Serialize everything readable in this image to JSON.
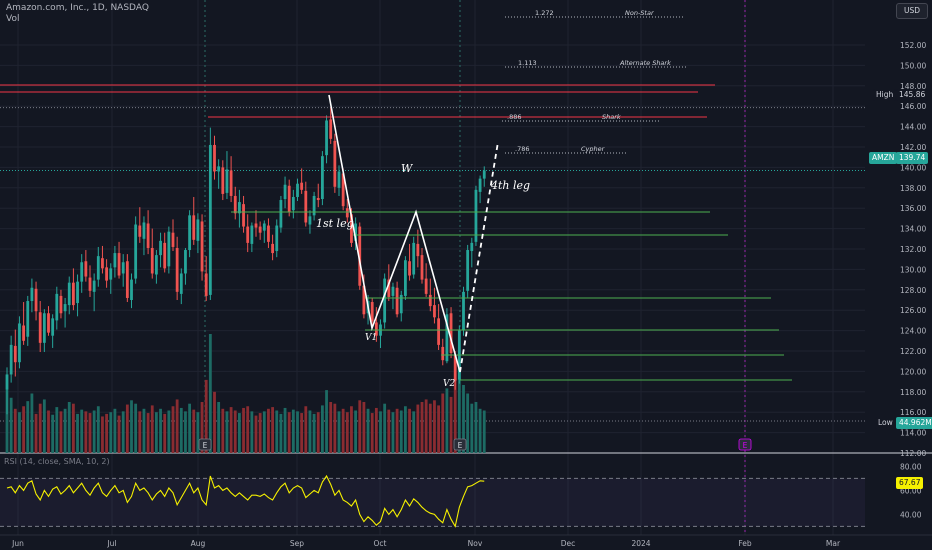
{
  "header": {
    "title": "Amazon.com, Inc., 1D, NASDAQ",
    "vol_label": "Vol"
  },
  "currency": "USD",
  "chart_data": {
    "type": "candlestick",
    "symbol": "AMZN",
    "y_ticks": [
      112,
      114,
      116,
      118,
      120,
      122,
      124,
      126,
      128,
      130,
      132,
      134,
      136,
      138,
      140,
      142,
      144,
      146,
      148,
      150,
      152
    ],
    "x_ticks": [
      "Jun",
      "Jul",
      "Aug",
      "Sep",
      "Oct",
      "Nov",
      "Dec",
      "2024",
      "Feb",
      "Mar"
    ],
    "ylim": [
      112,
      153
    ],
    "price_tag": "139.74",
    "high": {
      "label": "High",
      "value": "145.86"
    },
    "low_volume": {
      "label": "Low",
      "value": "44.962M"
    },
    "fib_levels": [
      {
        "ratio": "1.272",
        "name": "Non-Star"
      },
      {
        "ratio": "1.113",
        "name": "Alternate Shark"
      },
      {
        "ratio": ".886",
        "name": "Shark"
      },
      {
        "ratio": ".786",
        "name": "Cypher"
      }
    ],
    "annotations": [
      "W",
      "1st leg",
      "4th leg",
      "V1",
      "V2"
    ],
    "earnings_markers": [
      "E",
      "E"
    ],
    "rsi": {
      "label": "RSI (14, close, SMA, 10, 2)",
      "value": "67.67",
      "ticks": [
        80.0,
        60.0,
        40.0
      ],
      "bands": [
        70,
        30
      ]
    },
    "ohlc": [
      [
        118.2,
        120.4,
        115.8,
        119.7
      ],
      [
        119.7,
        123.5,
        118.9,
        122.6
      ],
      [
        122.5,
        124.1,
        119.5,
        120.9
      ],
      [
        120.9,
        125.4,
        120.3,
        124.7
      ],
      [
        124.5,
        126.8,
        122.6,
        123.0
      ],
      [
        123.4,
        127.4,
        122.5,
        126.9
      ],
      [
        126.9,
        129.1,
        125.8,
        128.2
      ],
      [
        128.1,
        128.8,
        125.0,
        125.9
      ],
      [
        125.8,
        126.9,
        121.9,
        122.8
      ],
      [
        122.8,
        126.1,
        121.9,
        125.7
      ],
      [
        125.7,
        126.4,
        123.5,
        123.8
      ],
      [
        123.5,
        125.6,
        122.3,
        125.2
      ],
      [
        125.0,
        128.3,
        124.1,
        127.6
      ],
      [
        127.4,
        128.0,
        125.2,
        125.7
      ],
      [
        125.9,
        127.2,
        124.3,
        126.6
      ],
      [
        126.5,
        129.3,
        125.6,
        128.7
      ],
      [
        128.7,
        130.1,
        126.0,
        126.5
      ],
      [
        126.7,
        129.5,
        125.4,
        128.8
      ],
      [
        128.8,
        131.5,
        127.7,
        130.7
      ],
      [
        130.8,
        131.9,
        128.8,
        129.3
      ],
      [
        129.2,
        130.4,
        127.3,
        127.9
      ],
      [
        127.8,
        129.6,
        125.9,
        128.9
      ],
      [
        129.0,
        132.2,
        128.3,
        131.3
      ],
      [
        131.1,
        132.3,
        129.6,
        130.1
      ],
      [
        130.2,
        131.0,
        128.2,
        128.9
      ],
      [
        129.0,
        130.6,
        127.6,
        130.1
      ],
      [
        130.2,
        132.3,
        129.2,
        131.6
      ],
      [
        131.6,
        132.7,
        129.1,
        129.4
      ],
      [
        129.6,
        131.5,
        128.3,
        130.7
      ],
      [
        130.8,
        131.5,
        126.8,
        127.2
      ],
      [
        127.0,
        129.6,
        126.2,
        129.0
      ],
      [
        129.1,
        135.2,
        128.6,
        134.4
      ],
      [
        134.3,
        136.1,
        132.6,
        133.2
      ],
      [
        133.0,
        135.2,
        131.4,
        134.6
      ],
      [
        134.5,
        135.8,
        131.5,
        132.1
      ],
      [
        132.1,
        134.0,
        129.1,
        129.6
      ],
      [
        129.5,
        131.9,
        128.6,
        131.4
      ],
      [
        131.4,
        133.6,
        130.2,
        132.8
      ],
      [
        132.6,
        133.6,
        129.7,
        130.1
      ],
      [
        130.3,
        134.2,
        129.6,
        133.7
      ],
      [
        133.6,
        134.9,
        131.8,
        132.2
      ],
      [
        132.1,
        133.2,
        127.0,
        127.8
      ],
      [
        127.6,
        130.1,
        126.6,
        129.6
      ],
      [
        129.6,
        132.1,
        128.5,
        131.9
      ],
      [
        131.9,
        135.8,
        131.2,
        135.3
      ],
      [
        135.3,
        137.1,
        132.4,
        132.9
      ],
      [
        132.8,
        135.5,
        131.6,
        134.9
      ],
      [
        134.7,
        135.4,
        128.9,
        129.8
      ],
      [
        129.6,
        131.3,
        126.9,
        127.4
      ],
      [
        127.5,
        143.9,
        127.0,
        142.2
      ],
      [
        142.2,
        143.1,
        138.8,
        139.6
      ],
      [
        139.6,
        140.8,
        137.9,
        140.1
      ],
      [
        140.0,
        140.7,
        136.8,
        137.4
      ],
      [
        137.5,
        141.6,
        136.9,
        139.8
      ],
      [
        139.7,
        141.1,
        136.6,
        137.2
      ],
      [
        137.2,
        138.1,
        134.9,
        135.5
      ],
      [
        135.5,
        137.8,
        134.1,
        136.6
      ],
      [
        136.4,
        137.2,
        133.6,
        134.2
      ],
      [
        134.2,
        135.4,
        131.7,
        132.6
      ],
      [
        132.5,
        134.6,
        131.7,
        134.3
      ],
      [
        134.5,
        135.8,
        133.2,
        134.1
      ],
      [
        134.2,
        134.7,
        132.9,
        133.6
      ],
      [
        133.8,
        134.8,
        132.6,
        134.5
      ],
      [
        134.3,
        135.0,
        132.1,
        132.7
      ],
      [
        132.5,
        133.4,
        130.9,
        131.6
      ],
      [
        131.8,
        134.9,
        131.2,
        134.3
      ],
      [
        134.1,
        137.2,
        133.6,
        136.8
      ],
      [
        136.9,
        139.1,
        136.0,
        138.3
      ],
      [
        138.2,
        138.8,
        135.2,
        135.6
      ],
      [
        135.8,
        137.8,
        135.0,
        137.1
      ],
      [
        137.1,
        138.9,
        136.7,
        138.4
      ],
      [
        138.5,
        139.9,
        137.4,
        137.8
      ],
      [
        137.7,
        138.6,
        134.2,
        134.6
      ],
      [
        134.4,
        135.8,
        133.5,
        135.2
      ],
      [
        135.3,
        137.6,
        134.8,
        137.2
      ],
      [
        137.0,
        138.4,
        136.1,
        136.8
      ],
      [
        136.9,
        141.6,
        136.3,
        141.1
      ],
      [
        141.2,
        145.1,
        140.4,
        144.6
      ],
      [
        144.7,
        145.9,
        142.3,
        142.8
      ],
      [
        142.6,
        143.3,
        137.5,
        138.1
      ],
      [
        138.0,
        140.2,
        137.2,
        139.6
      ],
      [
        139.4,
        139.9,
        135.8,
        136.2
      ],
      [
        136.0,
        136.9,
        134.6,
        135.1
      ],
      [
        135.4,
        136.0,
        132.2,
        132.6
      ],
      [
        132.8,
        135.1,
        131.9,
        134.5
      ],
      [
        134.2,
        134.6,
        128.0,
        128.4
      ],
      [
        128.4,
        129.5,
        125.2,
        125.6
      ],
      [
        125.7,
        127.5,
        124.6,
        126.9
      ],
      [
        126.8,
        127.2,
        124.4,
        124.9
      ],
      [
        124.8,
        126.3,
        122.9,
        123.5
      ],
      [
        123.5,
        125.1,
        122.3,
        124.6
      ],
      [
        124.8,
        129.6,
        124.2,
        129.1
      ],
      [
        129.0,
        130.5,
        126.9,
        127.3
      ],
      [
        127.4,
        128.7,
        126.1,
        128.3
      ],
      [
        128.2,
        128.8,
        125.3,
        125.6
      ],
      [
        125.7,
        127.9,
        124.9,
        127.5
      ],
      [
        127.4,
        131.3,
        127.0,
        130.9
      ],
      [
        130.8,
        132.5,
        128.9,
        129.4
      ],
      [
        129.5,
        133.2,
        129.1,
        132.6
      ],
      [
        132.5,
        133.9,
        130.2,
        131.3
      ],
      [
        131.4,
        132.1,
        128.6,
        129.0
      ],
      [
        129.1,
        130.6,
        127.3,
        127.6
      ],
      [
        127.5,
        129.1,
        125.9,
        126.4
      ],
      [
        126.5,
        128.2,
        124.7,
        125.3
      ],
      [
        125.2,
        126.6,
        122.1,
        122.6
      ],
      [
        122.4,
        123.2,
        120.6,
        121.1
      ],
      [
        121.0,
        126.2,
        120.8,
        125.6
      ],
      [
        125.7,
        126.3,
        121.3,
        121.8
      ],
      [
        121.6,
        122.0,
        118.2,
        119.1
      ],
      [
        119.2,
        124.5,
        118.8,
        124.0
      ],
      [
        124.1,
        128.3,
        123.5,
        127.8
      ],
      [
        127.9,
        132.4,
        127.2,
        131.9
      ],
      [
        131.8,
        133.1,
        130.2,
        132.6
      ],
      [
        132.7,
        138.2,
        132.3,
        137.8
      ],
      [
        137.6,
        139.2,
        136.5,
        138.9
      ],
      [
        138.9,
        140.1,
        138.1,
        139.7
      ]
    ],
    "volume": [
      74,
      65,
      52,
      48,
      55,
      61,
      70,
      46,
      58,
      63,
      50,
      45,
      54,
      49,
      52,
      60,
      58,
      46,
      51,
      49,
      47,
      50,
      55,
      43,
      46,
      48,
      52,
      44,
      49,
      57,
      62,
      58,
      49,
      52,
      47,
      56,
      48,
      52,
      46,
      50,
      55,
      63,
      53,
      49,
      58,
      51,
      48,
      60,
      86,
      140,
      72,
      60,
      52,
      49,
      54,
      50,
      47,
      53,
      55,
      49,
      44,
      47,
      49,
      52,
      54,
      50,
      46,
      53,
      48,
      51,
      49,
      47,
      55,
      50,
      46,
      48,
      56,
      74,
      60,
      58,
      49,
      52,
      48,
      55,
      50,
      62,
      60,
      52,
      47,
      53,
      49,
      58,
      51,
      48,
      52,
      50,
      55,
      52,
      49,
      57,
      60,
      63,
      58,
      62,
      56,
      70,
      76,
      66,
      88,
      100,
      80,
      70,
      58,
      60,
      52,
      50
    ],
    "rsi_values": [
      62,
      63,
      58,
      64,
      60,
      66,
      68,
      57,
      52,
      60,
      55,
      61,
      63,
      57,
      60,
      64,
      58,
      62,
      66,
      60,
      56,
      62,
      66,
      58,
      55,
      60,
      64,
      58,
      60,
      50,
      55,
      66,
      60,
      62,
      58,
      52,
      57,
      60,
      55,
      62,
      58,
      48,
      54,
      60,
      66,
      58,
      62,
      52,
      48,
      72,
      62,
      64,
      60,
      62,
      58,
      55,
      58,
      55,
      52,
      56,
      56,
      55,
      57,
      54,
      52,
      58,
      63,
      66,
      58,
      62,
      64,
      62,
      54,
      57,
      60,
      58,
      67,
      72,
      65,
      56,
      60,
      52,
      50,
      47,
      52,
      40,
      34,
      38,
      35,
      31,
      34,
      45,
      40,
      44,
      38,
      44,
      52,
      47,
      53,
      50,
      46,
      43,
      41,
      40,
      36,
      33,
      44,
      36,
      30,
      46,
      55,
      63,
      64,
      66,
      68,
      67.67
    ]
  }
}
